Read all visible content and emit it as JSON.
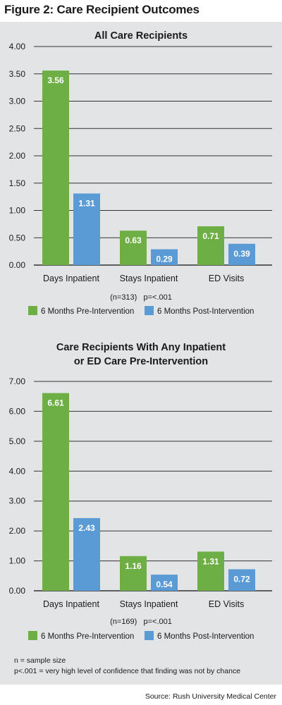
{
  "figure_title": "Figure 2: Care Recipient Outcomes",
  "colors": {
    "pre": "#6eaf45",
    "post": "#5b9bd5",
    "panel_bg": "#e3e4e6",
    "grid": "#333333"
  },
  "chart_data": [
    {
      "type": "bar",
      "title": "All Care Recipients",
      "categories": [
        "Days Inpatient",
        "Stays Inpatient",
        "ED Visits"
      ],
      "series": [
        {
          "name": "6 Months Pre-Intervention",
          "values": [
            3.56,
            0.63,
            0.71
          ],
          "labels": [
            "3.56",
            "0.63",
            "0.71"
          ]
        },
        {
          "name": "6 Months Post-Intervention",
          "values": [
            1.31,
            0.29,
            0.39
          ],
          "labels": [
            "1.31",
            "0.29",
            "0.39"
          ]
        }
      ],
      "ylim": [
        0,
        4.0
      ],
      "yticks": [
        "0.00",
        "0.50",
        "1.00",
        "1.50",
        "2.00",
        "2.50",
        "3.00",
        "3.50",
        "4.00"
      ],
      "ytick_values": [
        0,
        0.5,
        1.0,
        1.5,
        2.0,
        2.5,
        3.0,
        3.5,
        4.0
      ],
      "grid": true,
      "stat_note": "(n=313)   p=<.001",
      "legend_placement": "bottom"
    },
    {
      "type": "bar",
      "title": "Care Recipients With Any Inpatient or ED Care Pre-Intervention",
      "title_lines": [
        "Care Recipients With Any Inpatient",
        "or ED Care Pre-Intervention"
      ],
      "categories": [
        "Days Inpatient",
        "Stays Inpatient",
        "ED Visits"
      ],
      "series": [
        {
          "name": "6 Months Pre-Intervention",
          "values": [
            6.61,
            1.16,
            1.31
          ],
          "labels": [
            "6.61",
            "1.16",
            "1.31"
          ]
        },
        {
          "name": "6 Months Post-Intervention",
          "values": [
            2.43,
            0.54,
            0.72
          ],
          "labels": [
            "2.43",
            "0.54",
            "0.72"
          ]
        }
      ],
      "ylim": [
        0,
        7.0
      ],
      "yticks": [
        "0.00",
        "1.00",
        "2.00",
        "3.00",
        "4.00",
        "5.00",
        "6.00",
        "7.00"
      ],
      "ytick_values": [
        0,
        1,
        2,
        3,
        4,
        5,
        6,
        7
      ],
      "grid": true,
      "stat_note": "(n=169)   p=<.001",
      "legend_placement": "bottom"
    }
  ],
  "notes": [
    "n = sample size",
    "p<.001 = very high level of confidence that finding was not by chance"
  ],
  "source": "Source: Rush University Medical Center"
}
